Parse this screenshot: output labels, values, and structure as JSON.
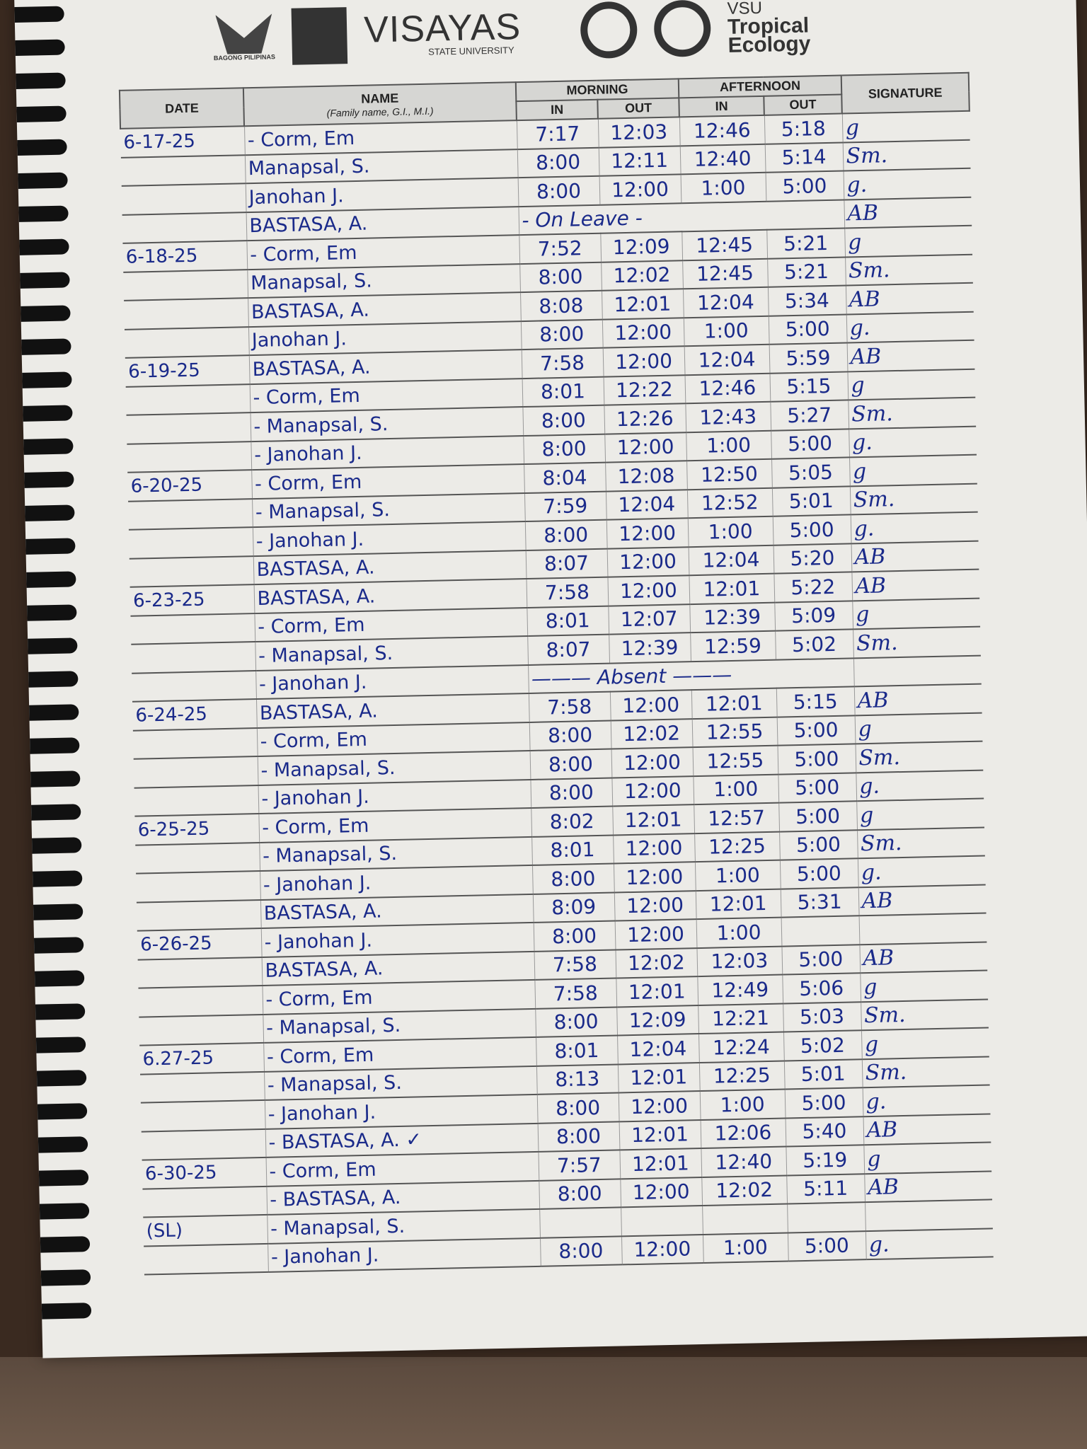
{
  "header": {
    "logos": {
      "bagong_pilipinas": "BAGONG PILIPINAS",
      "university": "VISAYAS",
      "university_sub": "STATE UNIVERSITY",
      "unit_prefix": "VSU",
      "unit_name_1": "Tropical",
      "unit_name_2": "Ecology"
    }
  },
  "table": {
    "columns": {
      "date": "DATE",
      "name": "NAME",
      "name_sub": "(Family name, G.I., M.I.)",
      "morning": "MORNING",
      "afternoon": "AFTERNOON",
      "in": "IN",
      "out": "OUT",
      "signature": "SIGNATURE"
    },
    "rows": [
      {
        "date": "6-17-25",
        "name": "- Corm, Em",
        "am_in": "7:17",
        "am_out": "12:03",
        "pm_in": "12:46",
        "pm_out": "5:18",
        "sig": "g"
      },
      {
        "date": "",
        "name": "Manapsal, S.",
        "am_in": "8:00",
        "am_out": "12:11",
        "pm_in": "12:40",
        "pm_out": "5:14",
        "sig": "Sm."
      },
      {
        "date": "",
        "name": "Janohan J.",
        "am_in": "8:00",
        "am_out": "12:00",
        "pm_in": "1:00",
        "pm_out": "5:00",
        "sig": "g."
      },
      {
        "date": "",
        "name": "BASTASA, A.",
        "note": "- On Leave -",
        "sig": "AB"
      },
      {
        "date": "6-18-25",
        "name": "- Corm, Em",
        "am_in": "7:52",
        "am_out": "12:09",
        "pm_in": "12:45",
        "pm_out": "5:21",
        "sig": "g"
      },
      {
        "date": "",
        "name": "Manapsal, S.",
        "am_in": "8:00",
        "am_out": "12:02",
        "pm_in": "12:45",
        "pm_out": "5:21",
        "sig": "Sm."
      },
      {
        "date": "",
        "name": "BASTASA, A.",
        "am_in": "8:08",
        "am_out": "12:01",
        "pm_in": "12:04",
        "pm_out": "5:34",
        "sig": "AB"
      },
      {
        "date": "",
        "name": "Janohan J.",
        "am_in": "8:00",
        "am_out": "12:00",
        "pm_in": "1:00",
        "pm_out": "5:00",
        "sig": "g."
      },
      {
        "date": "6-19-25",
        "name": "BASTASA, A.",
        "am_in": "7:58",
        "am_out": "12:00",
        "pm_in": "12:04",
        "pm_out": "5:59",
        "sig": "AB"
      },
      {
        "date": "",
        "name": "- Corm, Em",
        "am_in": "8:01",
        "am_out": "12:22",
        "pm_in": "12:46",
        "pm_out": "5:15",
        "sig": "g"
      },
      {
        "date": "",
        "name": "- Manapsal, S.",
        "am_in": "8:00",
        "am_out": "12:26",
        "pm_in": "12:43",
        "pm_out": "5:27",
        "sig": "Sm."
      },
      {
        "date": "",
        "name": "- Janohan J.",
        "am_in": "8:00",
        "am_out": "12:00",
        "pm_in": "1:00",
        "pm_out": "5:00",
        "sig": "g."
      },
      {
        "date": "6-20-25",
        "name": "- Corm, Em",
        "am_in": "8:04",
        "am_out": "12:08",
        "pm_in": "12:50",
        "pm_out": "5:05",
        "sig": "g"
      },
      {
        "date": "",
        "name": "- Manapsal, S.",
        "am_in": "7:59",
        "am_out": "12:04",
        "pm_in": "12:52",
        "pm_out": "5:01",
        "sig": "Sm."
      },
      {
        "date": "",
        "name": "- Janohan J.",
        "am_in": "8:00",
        "am_out": "12:00",
        "pm_in": "1:00",
        "pm_out": "5:00",
        "sig": "g."
      },
      {
        "date": "",
        "name": "BASTASA, A.",
        "am_in": "8:07",
        "am_out": "12:00",
        "pm_in": "12:04",
        "pm_out": "5:20",
        "sig": "AB"
      },
      {
        "date": "6-23-25",
        "name": "BASTASA, A.",
        "am_in": "7:58",
        "am_out": "12:00",
        "pm_in": "12:01",
        "pm_out": "5:22",
        "sig": "AB"
      },
      {
        "date": "",
        "name": "- Corm, Em",
        "am_in": "8:01",
        "am_out": "12:07",
        "pm_in": "12:39",
        "pm_out": "5:09",
        "sig": "g"
      },
      {
        "date": "",
        "name": "- Manapsal, S.",
        "am_in": "8:07",
        "am_out": "12:39",
        "pm_in": "12:59",
        "pm_out": "5:02",
        "sig": "Sm."
      },
      {
        "date": "",
        "name": "- Janohan J.",
        "note": "——— Absent ———",
        "sig": ""
      },
      {
        "date": "6-24-25",
        "name": "BASTASA, A.",
        "am_in": "7:58",
        "am_out": "12:00",
        "pm_in": "12:01",
        "pm_out": "5:15",
        "sig": "AB"
      },
      {
        "date": "",
        "name": "- Corm, Em",
        "am_in": "8:00",
        "am_out": "12:02",
        "pm_in": "12:55",
        "pm_out": "5:00",
        "sig": "g"
      },
      {
        "date": "",
        "name": "- Manapsal, S.",
        "am_in": "8:00",
        "am_out": "12:00",
        "pm_in": "12:55",
        "pm_out": "5:00",
        "sig": "Sm."
      },
      {
        "date": "",
        "name": "- Janohan J.",
        "am_in": "8:00",
        "am_out": "12:00",
        "pm_in": "1:00",
        "pm_out": "5:00",
        "sig": "g."
      },
      {
        "date": "6-25-25",
        "name": "- Corm, Em",
        "am_in": "8:02",
        "am_out": "12:01",
        "pm_in": "12:57",
        "pm_out": "5:00",
        "sig": "g"
      },
      {
        "date": "",
        "name": "- Manapsal, S.",
        "am_in": "8:01",
        "am_out": "12:00",
        "pm_in": "12:25",
        "pm_out": "5:00",
        "sig": "Sm."
      },
      {
        "date": "",
        "name": "- Janohan J.",
        "am_in": "8:00",
        "am_out": "12:00",
        "pm_in": "1:00",
        "pm_out": "5:00",
        "sig": "g."
      },
      {
        "date": "",
        "name": "BASTASA, A.",
        "am_in": "8:09",
        "am_out": "12:00",
        "pm_in": "12:01",
        "pm_out": "5:31",
        "sig": "AB"
      },
      {
        "date": "6-26-25",
        "name": "- Janohan J.",
        "am_in": "8:00",
        "am_out": "12:00",
        "pm_in": "1:00",
        "pm_out": "",
        "sig": ""
      },
      {
        "date": "",
        "name": "BASTASA, A.",
        "am_in": "7:58",
        "am_out": "12:02",
        "pm_in": "12:03",
        "pm_out": "5:00",
        "sig": "AB"
      },
      {
        "date": "",
        "name": "- Corm, Em",
        "am_in": "7:58",
        "am_out": "12:01",
        "pm_in": "12:49",
        "pm_out": "5:06",
        "sig": "g"
      },
      {
        "date": "",
        "name": "- Manapsal, S.",
        "am_in": "8:00",
        "am_out": "12:09",
        "pm_in": "12:21",
        "pm_out": "5:03",
        "sig": "Sm."
      },
      {
        "date": "6.27-25",
        "name": "- Corm, Em",
        "am_in": "8:01",
        "am_out": "12:04",
        "pm_in": "12:24",
        "pm_out": "5:02",
        "sig": "g"
      },
      {
        "date": "",
        "name": "- Manapsal, S.",
        "am_in": "8:13",
        "am_out": "12:01",
        "pm_in": "12:25",
        "pm_out": "5:01",
        "sig": "Sm."
      },
      {
        "date": "",
        "name": "- Janohan J.",
        "am_in": "8:00",
        "am_out": "12:00",
        "pm_in": "1:00",
        "pm_out": "5:00",
        "sig": "g."
      },
      {
        "date": "",
        "name": "- BASTASA, A. ✓",
        "am_in": "8:00",
        "am_out": "12:01",
        "pm_in": "12:06",
        "pm_out": "5:40",
        "sig": "AB"
      },
      {
        "date": "6-30-25",
        "name": "- Corm, Em",
        "am_in": "7:57",
        "am_out": "12:01",
        "pm_in": "12:40",
        "pm_out": "5:19",
        "sig": "g"
      },
      {
        "date": "",
        "name": "- BASTASA, A.",
        "am_in": "8:00",
        "am_out": "12:00",
        "pm_in": "12:02",
        "pm_out": "5:11",
        "sig": "AB"
      },
      {
        "date": "(SL)",
        "name": "- Manapsal, S.",
        "am_in": "",
        "am_out": "",
        "pm_in": "",
        "pm_out": "",
        "sig": ""
      },
      {
        "date": "",
        "name": "- Janohan J.",
        "am_in": "8:00",
        "am_out": "12:00",
        "pm_in": "1:00",
        "pm_out": "5:00",
        "sig": "g."
      }
    ]
  }
}
